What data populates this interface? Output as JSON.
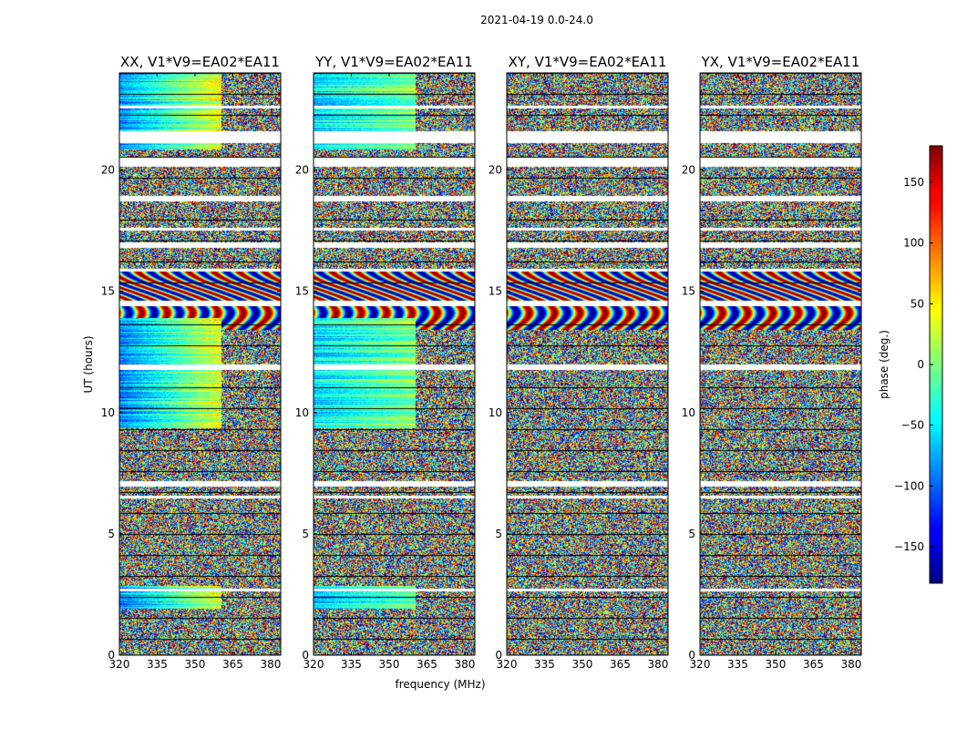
{
  "suptitle": "2021-04-19 0.0-24.0",
  "chart_data": {
    "type": "heatmap",
    "shared": {
      "xlabel": "frequency (MHz)",
      "ylabel": "UT (hours)",
      "x_ticks": [
        "320",
        "335",
        "350",
        "365",
        "380"
      ],
      "x_tick_values": [
        320,
        335,
        350,
        365,
        380
      ],
      "xlim": [
        320,
        384
      ],
      "y_ticks": [
        "0",
        "5",
        "10",
        "15",
        "20"
      ],
      "y_tick_values": [
        0,
        5,
        10,
        15,
        20
      ],
      "ylim": [
        0,
        24
      ]
    },
    "panels": [
      {
        "title": "XX, V1*V9=EA02*EA11"
      },
      {
        "title": "YY, V1*V9=EA02*EA11"
      },
      {
        "title": "XY, V1*V9=EA02*EA11"
      },
      {
        "title": "YX, V1*V9=EA02*EA11"
      }
    ],
    "colorbar": {
      "label": "phase (deg.)",
      "range": [
        -180,
        180
      ],
      "ticks": [
        "150",
        "100",
        "50",
        "0",
        "−50",
        "−100",
        "−150"
      ],
      "tick_values": [
        150,
        100,
        50,
        0,
        -50,
        -100,
        -150
      ],
      "colormap": "jet"
    }
  }
}
